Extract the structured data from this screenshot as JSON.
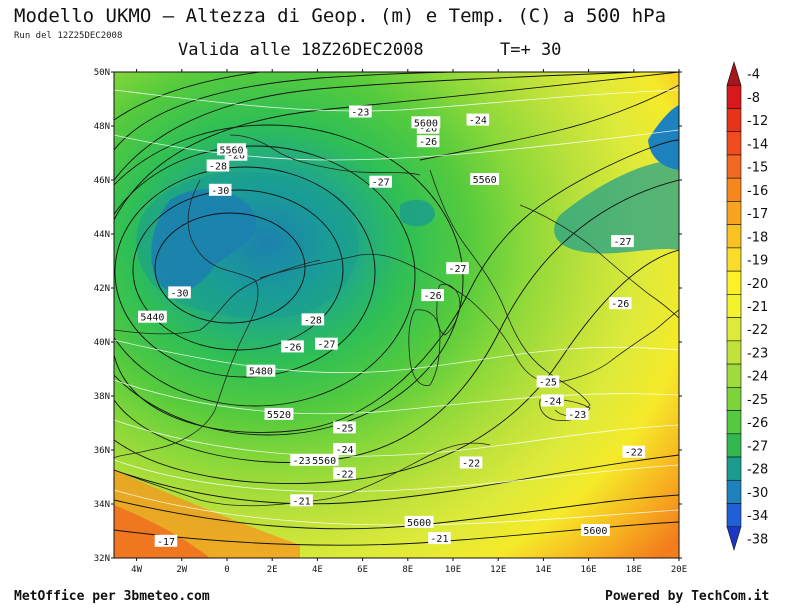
{
  "header": {
    "title": "Modello UKMO — Altezza di Geop. (m) e Temp. (C) a 500 hPa",
    "run": "Run del 12Z25DEC2008",
    "valid": "Valida alle 18Z26DEC2008",
    "timestep": "T=+ 30"
  },
  "footer": {
    "left": "MetOffice per 3bmeteo.com",
    "right": "Powered by TechCom.it"
  },
  "map": {
    "lat_labels": [
      "50N",
      "48N",
      "46N",
      "44N",
      "42N",
      "40N",
      "38N",
      "36N",
      "34N",
      "32N"
    ],
    "lat_values": [
      50,
      48,
      46,
      44,
      42,
      40,
      38,
      36,
      34,
      32
    ],
    "lon_labels": [
      "4W",
      "2W",
      "0",
      "2E",
      "4E",
      "6E",
      "8E",
      "10E",
      "12E",
      "14E",
      "16E",
      "18E",
      "20E"
    ],
    "lon_values": [
      -4,
      -2,
      0,
      2,
      4,
      6,
      8,
      10,
      12,
      14,
      16,
      18,
      20
    ],
    "lon_range": [
      -5,
      20
    ],
    "lat_range": [
      32,
      50
    ],
    "temp_labels": [
      {
        "text": "-23",
        "lon": 5.9,
        "lat": 48.5
      },
      {
        "text": "-24",
        "lon": 11.1,
        "lat": 48.2
      },
      {
        "text": "-26",
        "lon": 8.9,
        "lat": 47.9
      },
      {
        "text": "-26",
        "lon": 8.9,
        "lat": 47.4
      },
      {
        "text": "-26",
        "lon": 0.4,
        "lat": 46.9
      },
      {
        "text": "-28",
        "lon": -0.4,
        "lat": 46.5
      },
      {
        "text": "-30",
        "lon": -0.3,
        "lat": 45.6
      },
      {
        "text": "-27",
        "lon": 6.8,
        "lat": 45.9
      },
      {
        "text": "-27",
        "lon": 10.2,
        "lat": 42.7
      },
      {
        "text": "-27",
        "lon": 17.5,
        "lat": 43.7
      },
      {
        "text": "-26",
        "lon": 9.1,
        "lat": 41.7
      },
      {
        "text": "-26",
        "lon": 17.4,
        "lat": 41.4
      },
      {
        "text": "-30",
        "lon": -2.1,
        "lat": 41.8
      },
      {
        "text": "-28",
        "lon": 3.8,
        "lat": 40.8
      },
      {
        "text": "-26",
        "lon": 2.9,
        "lat": 39.8
      },
      {
        "text": "-27",
        "lon": 4.4,
        "lat": 39.9
      },
      {
        "text": "-25",
        "lon": 14.2,
        "lat": 38.5
      },
      {
        "text": "-24",
        "lon": 14.4,
        "lat": 37.8
      },
      {
        "text": "-23",
        "lon": 15.5,
        "lat": 37.3
      },
      {
        "text": "-25",
        "lon": 5.2,
        "lat": 36.8
      },
      {
        "text": "-24",
        "lon": 5.2,
        "lat": 36.0
      },
      {
        "text": "-23",
        "lon": 3.3,
        "lat": 35.6
      },
      {
        "text": "-22",
        "lon": 5.2,
        "lat": 35.1
      },
      {
        "text": "-22",
        "lon": 10.8,
        "lat": 35.5
      },
      {
        "text": "-22",
        "lon": 18.0,
        "lat": 35.9
      },
      {
        "text": "-21",
        "lon": 3.3,
        "lat": 34.1
      },
      {
        "text": "-21",
        "lon": 9.4,
        "lat": 32.7
      },
      {
        "text": "-17",
        "lon": -2.7,
        "lat": 32.6
      }
    ],
    "height_labels": [
      {
        "text": "5600",
        "lon": 8.8,
        "lat": 48.1
      },
      {
        "text": "5560",
        "lon": 0.2,
        "lat": 47.1
      },
      {
        "text": "5560",
        "lon": 11.4,
        "lat": 46.0
      },
      {
        "text": "5440",
        "lon": -3.3,
        "lat": 40.9
      },
      {
        "text": "5480",
        "lon": 1.5,
        "lat": 38.9
      },
      {
        "text": "5520",
        "lon": 2.3,
        "lat": 37.3
      },
      {
        "text": "5560",
        "lon": 4.3,
        "lat": 35.6
      },
      {
        "text": "5600",
        "lon": 8.5,
        "lat": 33.3
      },
      {
        "text": "5600",
        "lon": 16.3,
        "lat": 33.0
      }
    ]
  },
  "colorbar": {
    "labels": [
      "-4",
      "-8",
      "-12",
      "-14",
      "-15",
      "-16",
      "-17",
      "-18",
      "-19",
      "-20",
      "-21",
      "-22",
      "-23",
      "-24",
      "-25",
      "-26",
      "-27",
      "-28",
      "-30",
      "-34",
      "-38"
    ],
    "colors": [
      "#a4161a",
      "#d7191c",
      "#e8331b",
      "#f04c1e",
      "#f26922",
      "#f5871d",
      "#f7a520",
      "#f9c224",
      "#fbdc2a",
      "#fdf026",
      "#f3f22f",
      "#ddea3a",
      "#c2e23b",
      "#9fdb3a",
      "#7cd33a",
      "#55c93f",
      "#33b84f",
      "#1a9c8e",
      "#1d82be",
      "#1f5fd8",
      "#1d36c4"
    ]
  }
}
